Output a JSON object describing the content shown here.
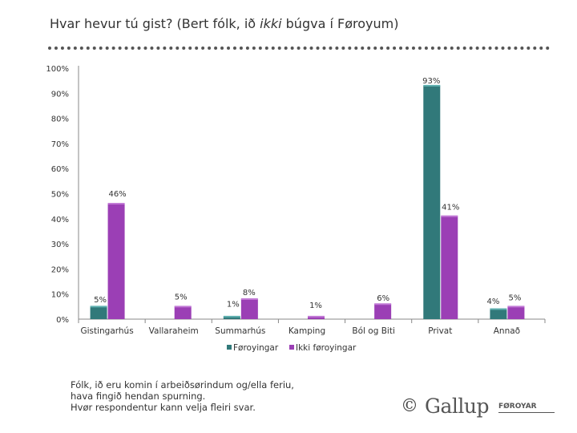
{
  "header": {
    "title_before": "Hvar hevur tú gist?  (Bert fólk, ið ",
    "title_italic": "ikki",
    "title_after": " búgva í Føroyum)"
  },
  "chart_data": {
    "type": "bar",
    "categories": [
      "Gistingarhús",
      "Vallaraheim",
      "Summarhús",
      "Kamping",
      "Ból og Biti",
      "Privat",
      "Annað"
    ],
    "series": [
      {
        "name": "Føroyingar",
        "values": [
          5,
          0,
          1,
          0,
          0,
          93,
          4
        ],
        "labels": [
          "5%",
          "",
          "1%",
          "",
          "",
          "93%",
          "4%"
        ]
      },
      {
        "name": "Ikki føroyingar",
        "values": [
          46,
          5,
          8,
          1,
          6,
          41,
          5
        ],
        "labels": [
          "46%",
          "5%",
          "8%",
          "1%",
          "6%",
          "41%",
          "5%"
        ]
      }
    ],
    "ylim": [
      0,
      100
    ],
    "yticks": [
      "0%",
      "10%",
      "20%",
      "30%",
      "40%",
      "50%",
      "60%",
      "70%",
      "80%",
      "90%",
      "100%"
    ],
    "legend_position": "bottom",
    "colors": {
      "Føroyingar": "#31797a",
      "Ikki føroyingar": "#9b3fb5"
    }
  },
  "footer": {
    "note_lines": [
      "Fólk, ið eru komin í arbeiðsørindum og/ella feriu,",
      "hava fingið hendan spurning.",
      "Hvør respondentur kann velja fleiri svar."
    ],
    "logo_copyright": "©",
    "logo_name": "Gallup",
    "logo_sub": "FØROYAR"
  }
}
